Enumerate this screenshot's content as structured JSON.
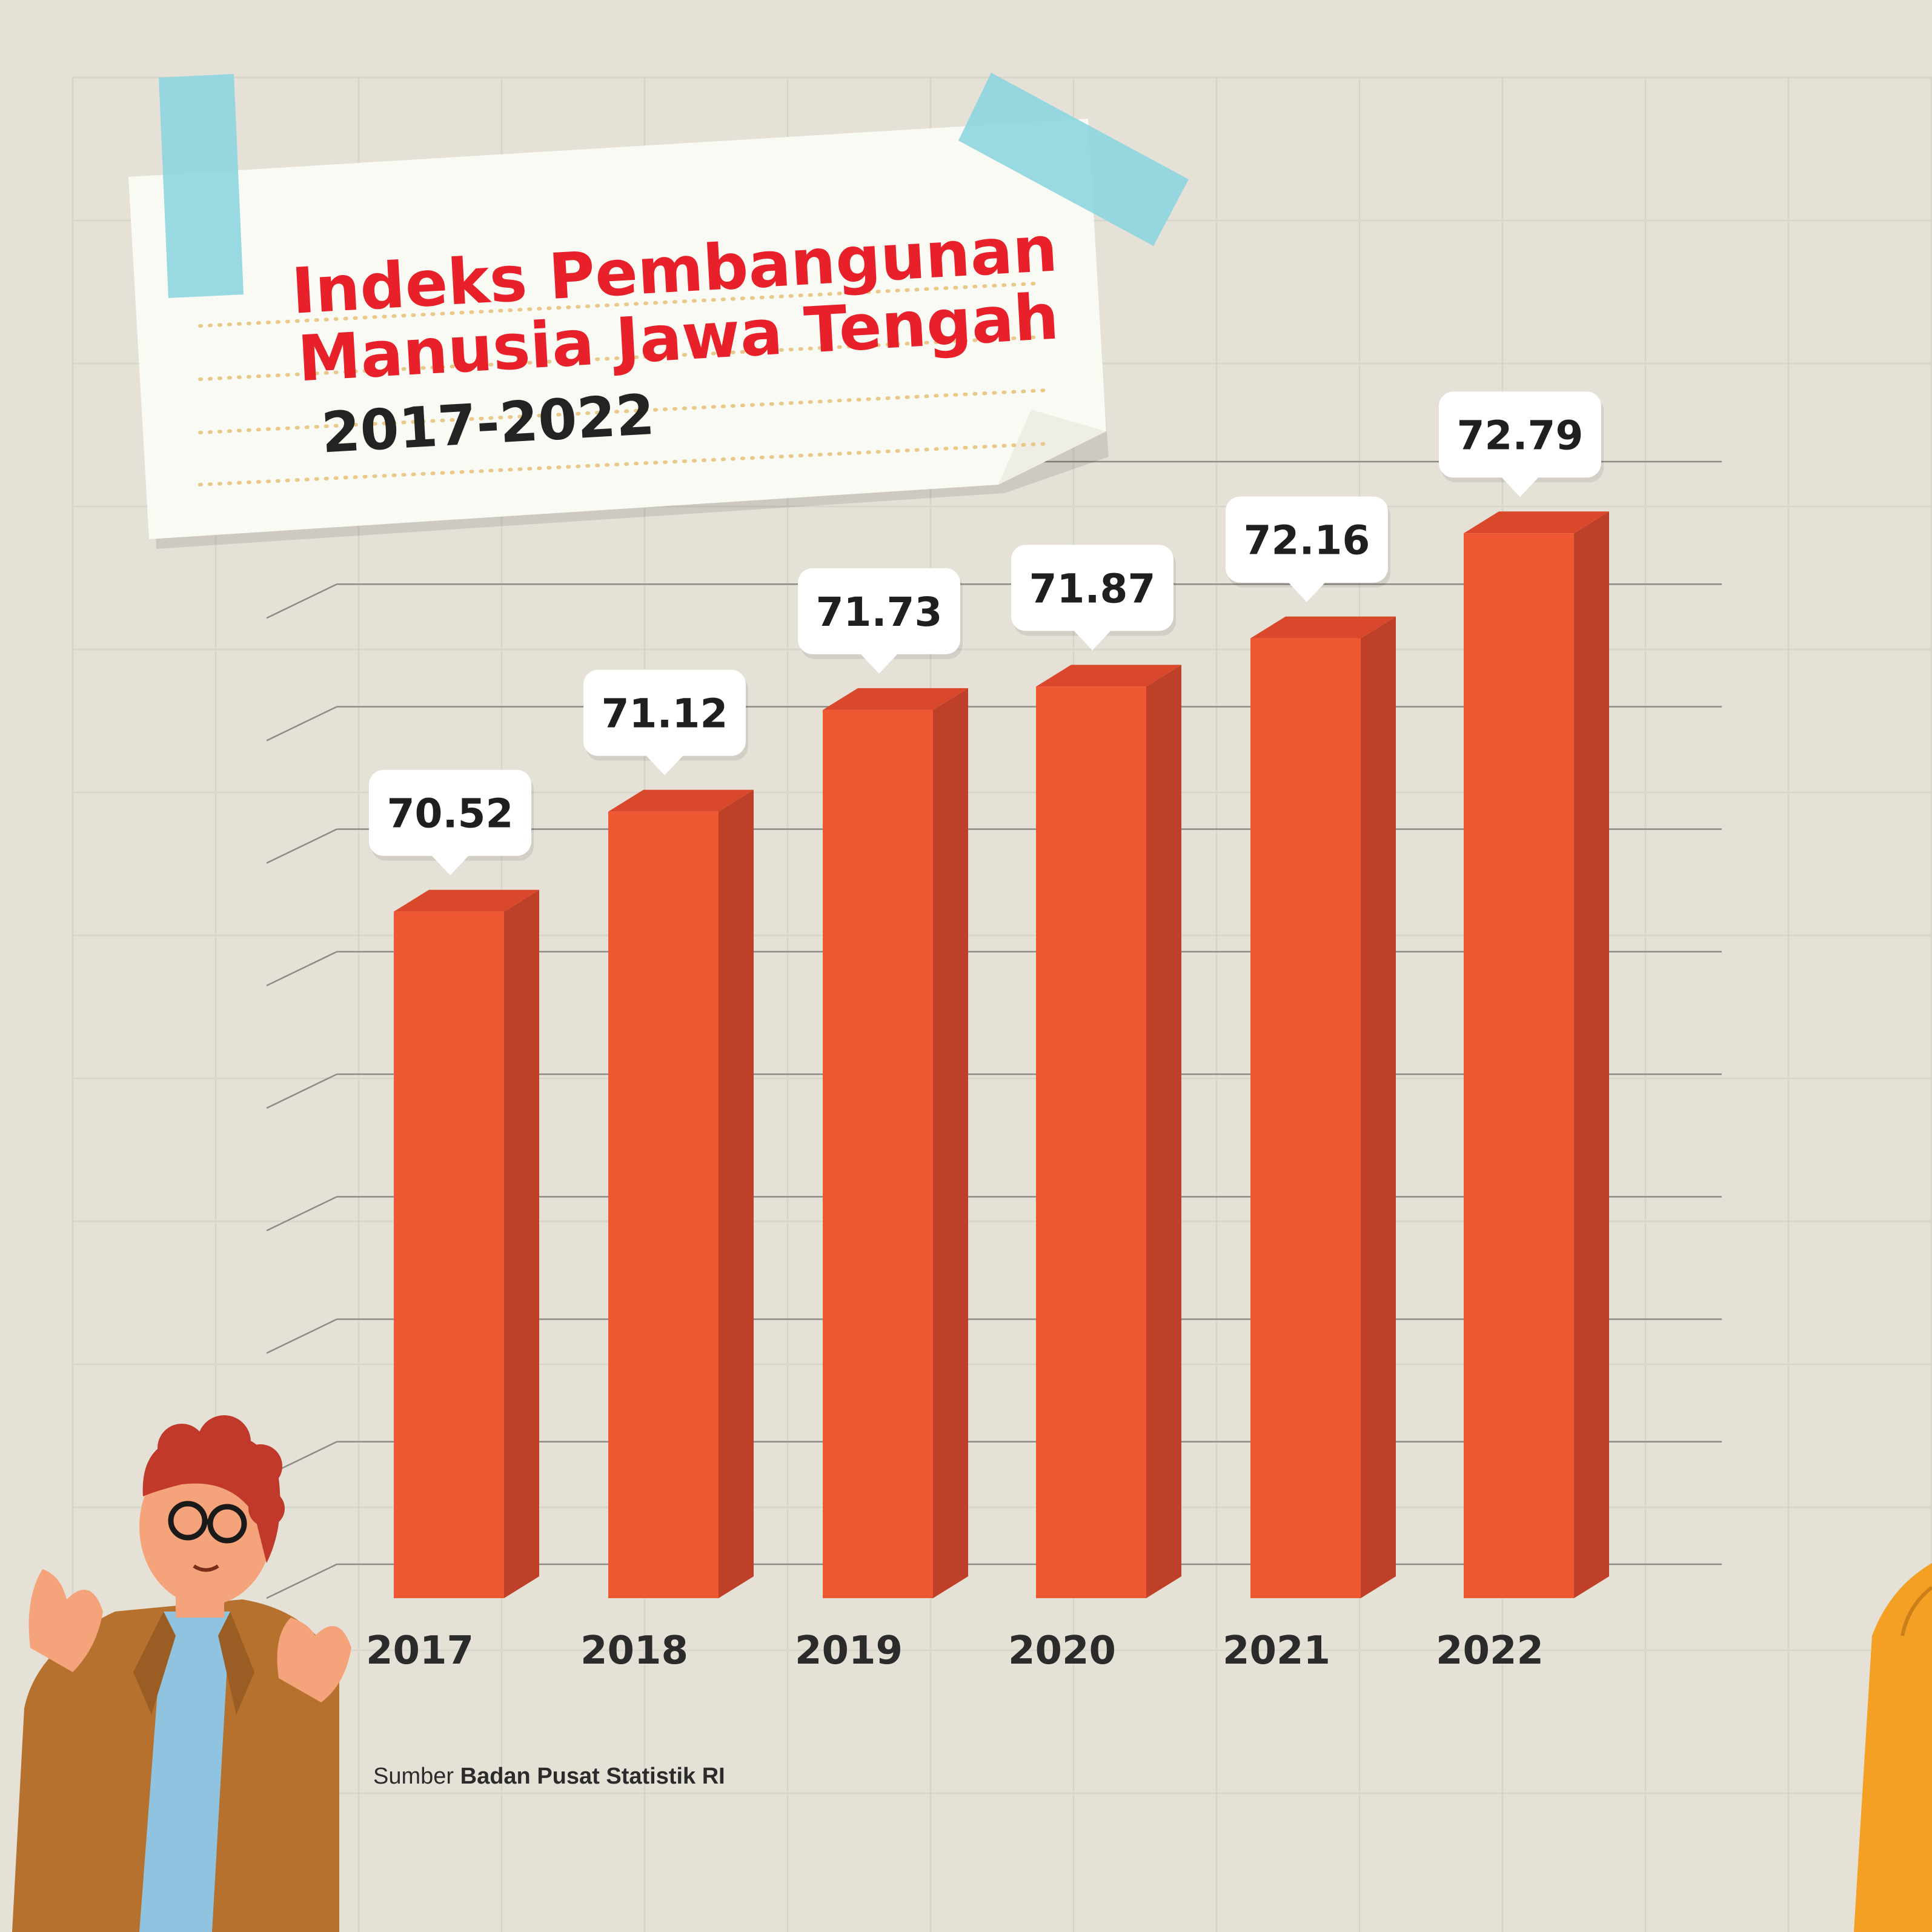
{
  "title": {
    "line1": "Indeks Pembangunan",
    "line2": "Manusia Jawa Tengah",
    "years": "2017-2022"
  },
  "source": {
    "prefix": "Sumber",
    "name": "Badan Pusat Statistik RI"
  },
  "colors": {
    "background": "#e6e1d7",
    "bar_front": "#f05733",
    "bar_side": "#bf4028",
    "bar_top": "#d9482b",
    "title_red": "#e8202a",
    "text_dark": "#2b2b2b",
    "tape": "#8fd6e0"
  },
  "chart_data": {
    "type": "bar",
    "categories": [
      "2017",
      "2018",
      "2019",
      "2020",
      "2021",
      "2022"
    ],
    "values": [
      70.52,
      71.12,
      71.73,
      71.87,
      72.16,
      72.79
    ],
    "labels": [
      "70.52",
      "71.12",
      "71.73",
      "71.87",
      "72.16",
      "72.79"
    ],
    "title": "Indeks Pembangunan Manusia Jawa Tengah",
    "subtitle": "2017-2022",
    "grid": true,
    "legend": "none"
  }
}
